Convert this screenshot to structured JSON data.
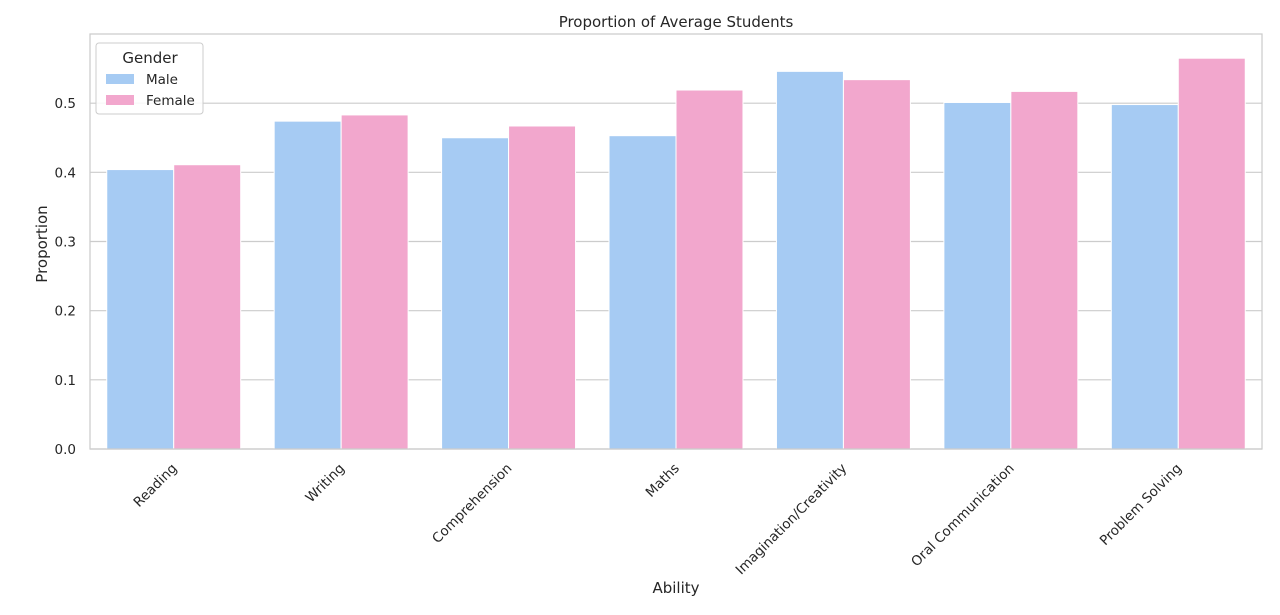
{
  "chart_data": {
    "type": "bar",
    "title": "Proportion of Average Students",
    "xlabel": "Ability",
    "ylabel": "Proportion",
    "categories": [
      "Reading",
      "Writing",
      "Comprehension",
      "Maths",
      "Imagination/Creativity",
      "Oral Communication",
      "Problem Solving"
    ],
    "series": [
      {
        "name": "Male",
        "color": "#a6cbf3",
        "values": [
          0.404,
          0.474,
          0.45,
          0.453,
          0.546,
          0.501,
          0.498
        ]
      },
      {
        "name": "Female",
        "color": "#f2a7cd",
        "values": [
          0.411,
          0.483,
          0.467,
          0.519,
          0.534,
          0.517,
          0.565
        ]
      }
    ],
    "ylim": [
      0,
      0.6
    ],
    "yticks": [
      "0.0",
      "0.1",
      "0.2",
      "0.3",
      "0.4",
      "0.5"
    ],
    "grid": true,
    "legend": {
      "title": "Gender",
      "placement": "top-left"
    }
  }
}
